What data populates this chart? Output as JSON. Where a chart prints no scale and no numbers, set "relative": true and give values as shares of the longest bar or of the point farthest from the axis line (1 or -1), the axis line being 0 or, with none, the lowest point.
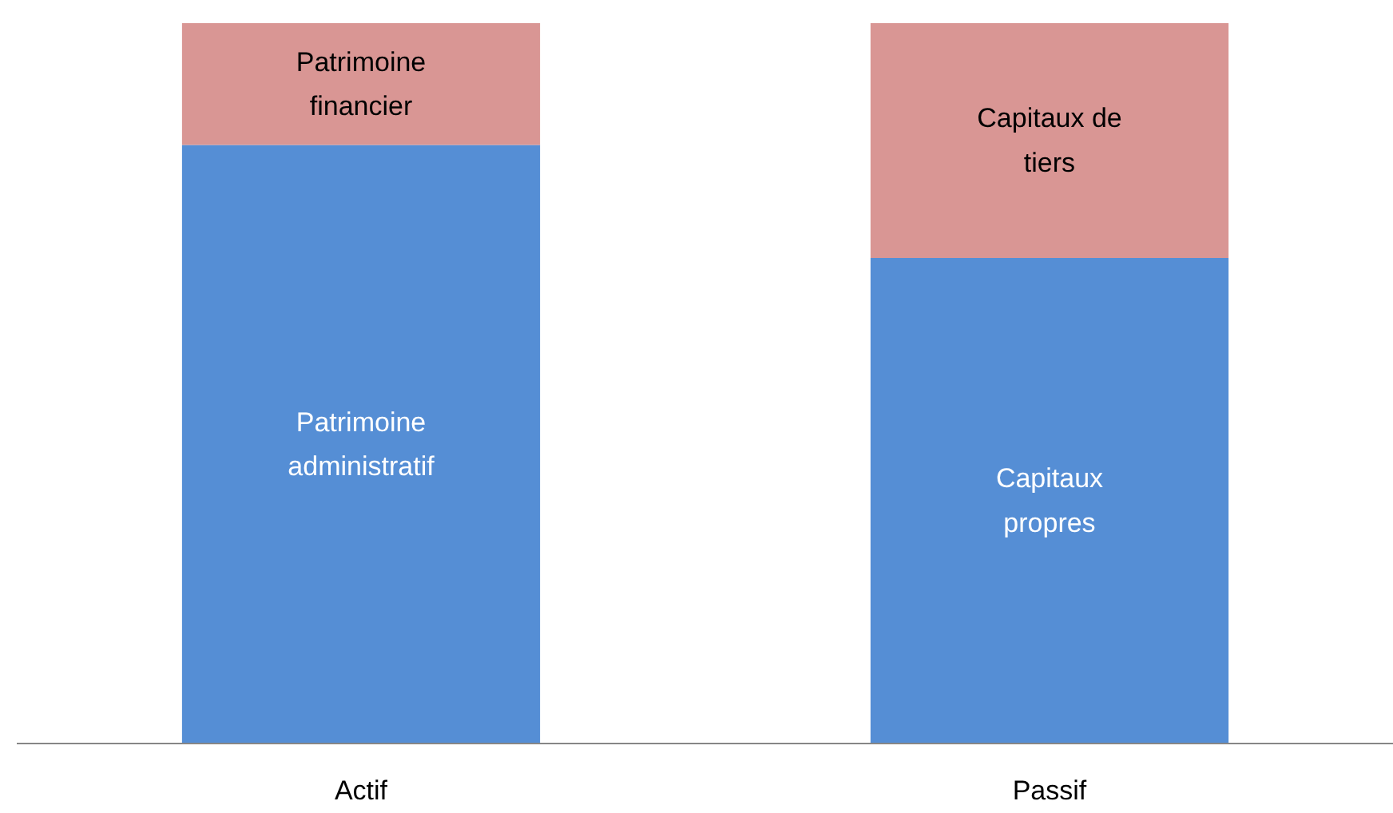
{
  "chart_data": {
    "type": "bar",
    "stacked": true,
    "relative": true,
    "categories": [
      "Actif",
      "Passif"
    ],
    "series": [
      {
        "name": "Patrimoine administratif",
        "color": "#558ed5",
        "values": [
          0.831,
          null
        ]
      },
      {
        "name": "Patrimoine financier",
        "color": "#d99694",
        "values": [
          0.169,
          null
        ]
      },
      {
        "name": "Capitaux propres",
        "color": "#558ed5",
        "values": [
          null,
          0.674
        ]
      },
      {
        "name": "Capitaux de tiers",
        "color": "#d99694",
        "values": [
          null,
          0.326
        ]
      }
    ],
    "grid": false
  }
}
